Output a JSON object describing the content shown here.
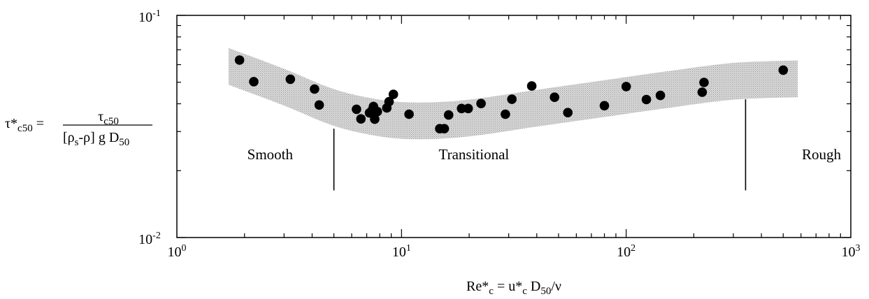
{
  "chart_data": {
    "type": "scatter",
    "title": "",
    "xscale": "log",
    "yscale": "log",
    "xlim": [
      1,
      1000
    ],
    "ylim": [
      0.01,
      0.1
    ],
    "xticks": [
      {
        "value": 1,
        "base": "10",
        "exp": "0"
      },
      {
        "value": 10,
        "base": "10",
        "exp": "1"
      },
      {
        "value": 100,
        "base": "10",
        "exp": "2"
      },
      {
        "value": 1000,
        "base": "10",
        "exp": "3"
      }
    ],
    "yticks": [
      {
        "value": 0.1,
        "base": "10",
        "exp": "-1"
      },
      {
        "value": 0.01,
        "base": "10",
        "exp": "-2"
      }
    ],
    "xlabel": {
      "lhs_base": "Re*",
      "lhs_sub": "c",
      "eq": " = ",
      "rhs1_base": "u*",
      "rhs1_sub": "c",
      "rhs2_base": " D",
      "rhs2_sub": "50",
      "rhs_tail": "/ν"
    },
    "ylabel": {
      "lhs_base": "τ*",
      "lhs_sub": "c50",
      "eq": " = ",
      "num_base": "τ",
      "num_sub": "c50",
      "den_open": "[",
      "den_rho_s": "ρ",
      "den_rho_s_sub": "s",
      "den_minus": "-ρ",
      "den_close": "]",
      "den_g": " g D",
      "den_sub": "50"
    },
    "regions": [
      {
        "label": "Smooth",
        "x": 2.6,
        "y": 0.0225
      },
      {
        "label": "Transitional",
        "x": 21,
        "y": 0.0225
      },
      {
        "label": "Rough",
        "x": 740,
        "y": 0.0225
      }
    ],
    "boundaries": [
      {
        "x": 5,
        "y_from": 0.0163,
        "y_to": 0.0309
      },
      {
        "x": 340,
        "y_from": 0.0163,
        "y_to": 0.0419
      }
    ],
    "band": {
      "center": [
        {
          "x": 1.7,
          "y": 0.0589
        },
        {
          "x": 3,
          "y": 0.0475
        },
        {
          "x": 5,
          "y": 0.0385
        },
        {
          "x": 8,
          "y": 0.0345
        },
        {
          "x": 12,
          "y": 0.0335
        },
        {
          "x": 20,
          "y": 0.0345
        },
        {
          "x": 40,
          "y": 0.0382
        },
        {
          "x": 80,
          "y": 0.0422
        },
        {
          "x": 150,
          "y": 0.0462
        },
        {
          "x": 300,
          "y": 0.0505
        },
        {
          "x": 580,
          "y": 0.0518
        }
      ],
      "halfwidth_factor": 1.21
    },
    "points": [
      {
        "x": 1.9,
        "y": 0.0629
      },
      {
        "x": 2.2,
        "y": 0.0503
      },
      {
        "x": 3.2,
        "y": 0.0516
      },
      {
        "x": 4.1,
        "y": 0.0466
      },
      {
        "x": 4.3,
        "y": 0.0395
      },
      {
        "x": 6.3,
        "y": 0.0378
      },
      {
        "x": 6.6,
        "y": 0.0342
      },
      {
        "x": 7.2,
        "y": 0.0364
      },
      {
        "x": 7.4,
        "y": 0.0374
      },
      {
        "x": 7.5,
        "y": 0.0389
      },
      {
        "x": 7.6,
        "y": 0.0341
      },
      {
        "x": 7.8,
        "y": 0.0369
      },
      {
        "x": 8.6,
        "y": 0.0383
      },
      {
        "x": 8.8,
        "y": 0.0409
      },
      {
        "x": 9.2,
        "y": 0.0441
      },
      {
        "x": 10.8,
        "y": 0.0359
      },
      {
        "x": 14.8,
        "y": 0.0309
      },
      {
        "x": 15.5,
        "y": 0.0309
      },
      {
        "x": 16.2,
        "y": 0.0356
      },
      {
        "x": 18.5,
        "y": 0.0381
      },
      {
        "x": 19.8,
        "y": 0.0381
      },
      {
        "x": 22.6,
        "y": 0.0401
      },
      {
        "x": 29.0,
        "y": 0.0359
      },
      {
        "x": 31.0,
        "y": 0.0419
      },
      {
        "x": 38.0,
        "y": 0.0481
      },
      {
        "x": 48.0,
        "y": 0.0428
      },
      {
        "x": 55.0,
        "y": 0.0365
      },
      {
        "x": 80.0,
        "y": 0.0392
      },
      {
        "x": 100.0,
        "y": 0.0478
      },
      {
        "x": 123.0,
        "y": 0.0418
      },
      {
        "x": 142.0,
        "y": 0.0436
      },
      {
        "x": 218.0,
        "y": 0.0451
      },
      {
        "x": 222.0,
        "y": 0.0499
      },
      {
        "x": 500.0,
        "y": 0.0567
      }
    ]
  }
}
